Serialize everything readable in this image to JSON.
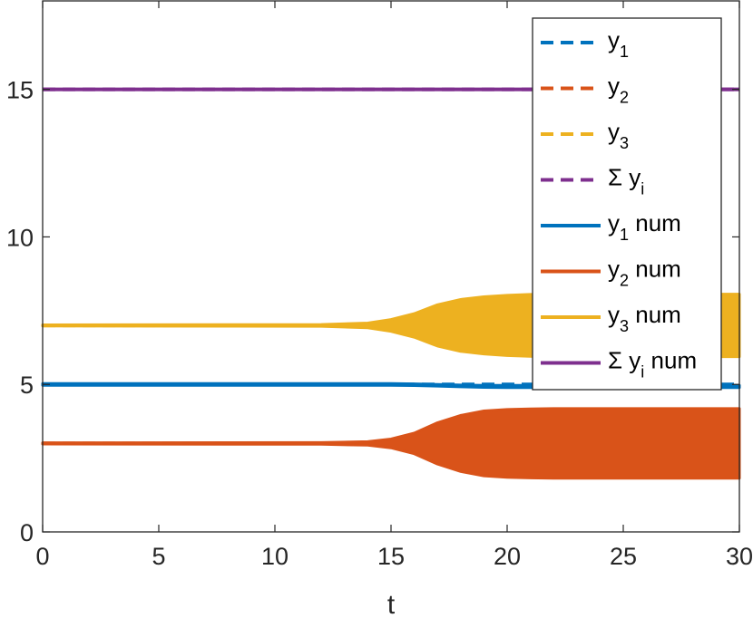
{
  "chart_data": {
    "type": "line",
    "xlabel": "t",
    "ylabel": "",
    "xlim": [
      0,
      30
    ],
    "ylim": [
      0,
      18
    ],
    "xticks": [
      0,
      5,
      10,
      15,
      20,
      25,
      30
    ],
    "yticks": [
      0,
      5,
      10,
      15
    ],
    "grid": false,
    "legend_position": "top-right",
    "colors": {
      "y1": "#0072BD",
      "y2": "#D95319",
      "y3": "#EDB120",
      "sum": "#7E2F8E"
    },
    "legend": [
      {
        "base": "y",
        "sub": "1",
        "suffix": "",
        "style": "dashed",
        "color": "#0072BD"
      },
      {
        "base": "y",
        "sub": "2",
        "suffix": "",
        "style": "dashed",
        "color": "#D95319"
      },
      {
        "base": "y",
        "sub": "3",
        "suffix": "",
        "style": "dashed",
        "color": "#EDB120"
      },
      {
        "base": "Σ y",
        "sub": "i",
        "suffix": "",
        "style": "dashed",
        "color": "#7E2F8E"
      },
      {
        "base": "y",
        "sub": "1",
        "suffix": " num",
        "style": "solid",
        "color": "#0072BD"
      },
      {
        "base": "y",
        "sub": "2",
        "suffix": " num",
        "style": "solid",
        "color": "#D95319"
      },
      {
        "base": "y",
        "sub": "3",
        "suffix": " num",
        "style": "solid",
        "color": "#EDB120"
      },
      {
        "base": "Σ y",
        "sub": "i",
        "suffix": " num",
        "style": "solid",
        "color": "#7E2F8E"
      }
    ],
    "series": [
      {
        "key": "y1",
        "style": "dashed",
        "color": "#0072BD",
        "x": [
          0,
          30
        ],
        "y": [
          5,
          5
        ]
      },
      {
        "key": "y2",
        "style": "dashed",
        "color": "#D95319",
        "x": [
          0,
          30
        ],
        "y": [
          3,
          3
        ]
      },
      {
        "key": "y3",
        "style": "dashed",
        "color": "#EDB120",
        "x": [
          0,
          30
        ],
        "y": [
          7,
          7
        ]
      },
      {
        "key": "sum",
        "style": "dashed",
        "color": "#7E2F8E",
        "x": [
          0,
          30
        ],
        "y": [
          15,
          15
        ]
      },
      {
        "key": "sum",
        "style": "solid",
        "color": "#7E2F8E",
        "x": [
          0,
          30
        ],
        "y": [
          15,
          15
        ]
      },
      {
        "key": "y1",
        "style": "band",
        "color": "#0072BD",
        "x": [
          0,
          14,
          15,
          16,
          17,
          18,
          19,
          20,
          22,
          25,
          30
        ],
        "upper": [
          5.03,
          5.03,
          5.03,
          5.02,
          5.0,
          4.98,
          4.97,
          4.97,
          4.97,
          4.97,
          4.97
        ],
        "lower": [
          4.97,
          4.97,
          4.97,
          4.96,
          4.94,
          4.92,
          4.9,
          4.89,
          4.89,
          4.89,
          4.89
        ]
      },
      {
        "key": "y2",
        "style": "band",
        "color": "#D95319",
        "x": [
          0,
          12,
          14,
          15,
          16,
          17,
          18,
          19,
          20,
          21,
          22,
          25,
          30
        ],
        "upper": [
          3.02,
          3.03,
          3.06,
          3.15,
          3.35,
          3.7,
          3.95,
          4.1,
          4.15,
          4.17,
          4.18,
          4.18,
          4.18
        ],
        "lower": [
          2.98,
          2.97,
          2.94,
          2.85,
          2.65,
          2.3,
          2.05,
          1.9,
          1.85,
          1.83,
          1.82,
          1.82,
          1.82
        ]
      },
      {
        "key": "y3",
        "style": "band",
        "color": "#EDB120",
        "x": [
          0,
          12,
          14,
          15,
          16,
          17,
          18,
          19,
          20,
          21,
          22,
          25,
          30
        ],
        "upper": [
          7.02,
          7.03,
          7.08,
          7.2,
          7.4,
          7.7,
          7.88,
          7.97,
          8.02,
          8.05,
          8.06,
          8.06,
          8.06
        ],
        "lower": [
          6.98,
          6.97,
          6.92,
          6.8,
          6.6,
          6.3,
          6.12,
          6.03,
          5.98,
          5.95,
          5.94,
          5.94,
          5.94
        ]
      }
    ]
  }
}
